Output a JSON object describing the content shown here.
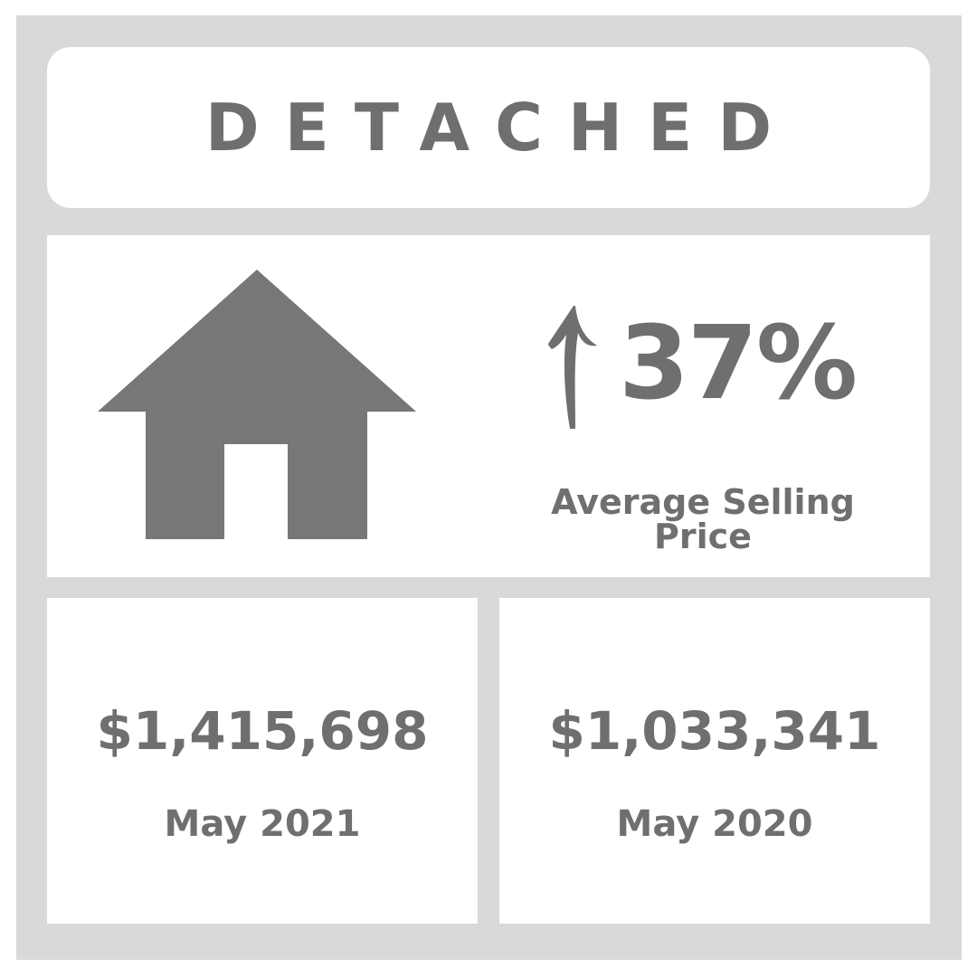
{
  "header": {
    "title": "DETACHED"
  },
  "summary": {
    "house_icon": "house-icon",
    "trend_icon": "up-arrow-icon",
    "change": "37%",
    "metric_label": "Average Selling Price"
  },
  "prices": [
    {
      "value": "$1,415,698",
      "period": "May 2021"
    },
    {
      "value": "$1,033,341",
      "period": "May 2020"
    }
  ],
  "colors": {
    "frame": "#d9d9d9",
    "card": "#ffffff",
    "text": "#6f6f6f",
    "icon": "#777777"
  }
}
